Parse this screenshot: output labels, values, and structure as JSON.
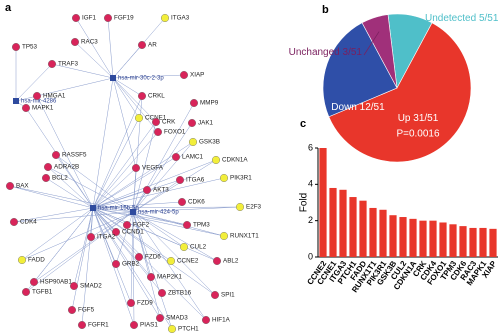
{
  "panels": [
    "a",
    "b",
    "c"
  ],
  "network": {
    "nodes": [
      {
        "label": "hsa-mir-30c-2-3p",
        "color": "#2e4a9e"
      },
      {
        "label": "hsa-mir-4286",
        "color": "#2e4a9e"
      },
      {
        "label": "hsa-mir-15b-5p",
        "color": "#2e4a9e"
      },
      {
        "label": "hsa-mir-424-5p",
        "color": "#2e4a9e"
      },
      {
        "label": "IGF1",
        "color": "#d8245a"
      },
      {
        "label": "FGF19",
        "color": "#d8245a"
      },
      {
        "label": "ITGA3",
        "color": "#f2ee3a"
      },
      {
        "label": "TP53",
        "color": "#d8245a"
      },
      {
        "label": "RAC3",
        "color": "#d8245a"
      },
      {
        "label": "AR",
        "color": "#d8245a"
      },
      {
        "label": "TRAF3",
        "color": "#d8245a"
      },
      {
        "label": "XIAP",
        "color": "#d8245a"
      },
      {
        "label": "HMGA1",
        "color": "#d8245a"
      },
      {
        "label": "MAPK1",
        "color": "#d8245a"
      },
      {
        "label": "CRKL",
        "color": "#d8245a"
      },
      {
        "label": "MMP9",
        "color": "#d8245a"
      },
      {
        "label": "CCNE1",
        "color": "#f2ee3a"
      },
      {
        "label": "CRK",
        "color": "#d8245a"
      },
      {
        "label": "JAK1",
        "color": "#d8245a"
      },
      {
        "label": "FOXO1",
        "color": "#d8245a"
      },
      {
        "label": "GSK3B",
        "color": "#f2ee3a"
      },
      {
        "label": "CDKN1A",
        "color": "#f2ee3a"
      },
      {
        "label": "LAMC1",
        "color": "#d8245a"
      },
      {
        "label": "RASSF5",
        "color": "#d8245a"
      },
      {
        "label": "ADRA2B",
        "color": "#d8245a"
      },
      {
        "label": "BCL2",
        "color": "#d8245a"
      },
      {
        "label": "VEGFA",
        "color": "#d8245a"
      },
      {
        "label": "BAX",
        "color": "#d8245a"
      },
      {
        "label": "PIK3R1",
        "color": "#f2ee3a"
      },
      {
        "label": "ITGA6",
        "color": "#d8245a"
      },
      {
        "label": "AKT3",
        "color": "#d8245a"
      },
      {
        "label": "CDK6",
        "color": "#d8245a"
      },
      {
        "label": "E2F3",
        "color": "#f2ee3a"
      },
      {
        "label": "CDK4",
        "color": "#d8245a"
      },
      {
        "label": "FGF2",
        "color": "#d8245a"
      },
      {
        "label": "TPM3",
        "color": "#d8245a"
      },
      {
        "label": "RUNX1T1",
        "color": "#f2ee3a"
      },
      {
        "label": "CCND1",
        "color": "#d8245a"
      },
      {
        "label": "ITGA2",
        "color": "#d8245a"
      },
      {
        "label": "CUL2",
        "color": "#f2ee3a"
      },
      {
        "label": "FZD6",
        "color": "#d8245a"
      },
      {
        "label": "GRB2",
        "color": "#d8245a"
      },
      {
        "label": "ABL2",
        "color": "#d8245a"
      },
      {
        "label": "CCNE2",
        "color": "#f2ee3a"
      },
      {
        "label": "FADD",
        "color": "#f2ee3a"
      },
      {
        "label": "HSP90AB1",
        "color": "#d8245a"
      },
      {
        "label": "SMAD2",
        "color": "#d8245a"
      },
      {
        "label": "MAP2K1",
        "color": "#d8245a"
      },
      {
        "label": "TGFB1",
        "color": "#d8245a"
      },
      {
        "label": "ZBTB16",
        "color": "#d8245a"
      },
      {
        "label": "SPI1",
        "color": "#d8245a"
      },
      {
        "label": "FZD9",
        "color": "#d8245a"
      },
      {
        "label": "FGF5",
        "color": "#d8245a"
      },
      {
        "label": "SMAD3",
        "color": "#d8245a"
      },
      {
        "label": "HIF1A",
        "color": "#d8245a"
      },
      {
        "label": "FGFR1",
        "color": "#d8245a"
      },
      {
        "label": "PIAS1",
        "color": "#d8245a"
      },
      {
        "label": "PTCH1",
        "color": "#f2ee3a"
      }
    ]
  },
  "chart_data": [
    {
      "type": "pie",
      "categories": [
        "Undetected",
        "Up",
        "Down",
        "Unchanged"
      ],
      "values": [
        5,
        31,
        12,
        3
      ],
      "value_labels": [
        "5/51",
        "31/51",
        "12/51",
        "3/51"
      ],
      "colors": [
        "#4fbfc9",
        "#e8362b",
        "#2f4fa8",
        "#a0307a"
      ],
      "annotation": "P=0.0016"
    },
    {
      "type": "bar",
      "ylabel": "Fold",
      "categories": [
        "CCNE2",
        "CCNE1",
        "ITGA3",
        "PTCH1",
        "FADD",
        "RUNX1T1",
        "PIK3R1",
        "GSK3B",
        "CUL2",
        "CDKN1A",
        "CRK",
        "CDK4",
        "FOXO1",
        "TPM3",
        "CDK6",
        "RAC3",
        "MAPK1",
        "XIAP"
      ],
      "values": [
        6.0,
        3.8,
        3.7,
        3.3,
        3.1,
        2.7,
        2.6,
        2.3,
        2.2,
        2.1,
        2.0,
        2.0,
        1.9,
        1.8,
        1.7,
        1.6,
        1.6,
        1.55
      ],
      "color": "#e8362b",
      "ylim": [
        0,
        6
      ],
      "yticks": [
        0,
        2,
        4,
        6
      ]
    }
  ]
}
